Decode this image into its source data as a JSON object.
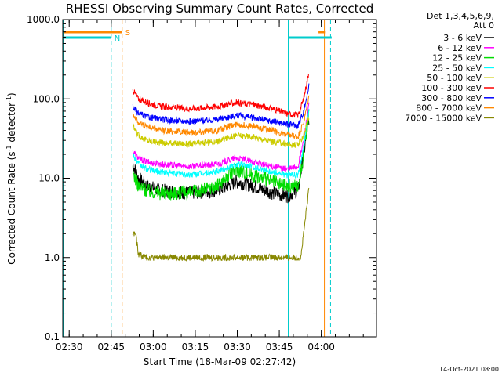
{
  "chart_data": {
    "type": "line",
    "title": "RHESSI Observing Summary Count Rates, Corrected",
    "xlabel": "Start Time (18-Mar-09 02:27:42)",
    "ylabel": "Corrected Count Rate (s",
    "ylabel_sup1": "-1",
    "ylabel_mid": " detector",
    "ylabel_sup2": "-1",
    "ylabel_end": ")",
    "yscale": "log",
    "ylim": [
      0.1,
      1000
    ],
    "xlim_minutes": [
      0,
      112
    ],
    "x_ticks": [
      {
        "minute": 2.3,
        "label": "02:30"
      },
      {
        "minute": 17.3,
        "label": "02:45"
      },
      {
        "minute": 32.3,
        "label": "03:00"
      },
      {
        "minute": 47.3,
        "label": "03:15"
      },
      {
        "minute": 62.3,
        "label": "03:30"
      },
      {
        "minute": 77.3,
        "label": "03:45"
      },
      {
        "minute": 92.3,
        "label": "04:00"
      }
    ],
    "y_ticks": [
      {
        "value": 0.1,
        "label": "0.1"
      },
      {
        "value": 1,
        "label": "1.0"
      },
      {
        "value": 10,
        "label": "10.0"
      },
      {
        "value": 100,
        "label": "100.0"
      },
      {
        "value": 1000,
        "label": "1000.0"
      }
    ],
    "legend_header": [
      "Det 1,3,4,5,6,9,",
      "Att 0"
    ],
    "series": [
      {
        "name": "3 - 6 keV",
        "color": "#000000",
        "x": [
          25,
          27,
          30,
          35,
          45,
          55,
          62,
          68,
          75,
          80,
          84,
          86,
          88
        ],
        "y": [
          15,
          10,
          8,
          7,
          6.5,
          7,
          9,
          8,
          6.5,
          6,
          7,
          20,
          60
        ]
      },
      {
        "name": "6 - 12 keV",
        "color": "#ff00ff",
        "x": [
          25,
          27,
          30,
          35,
          45,
          55,
          62,
          68,
          75,
          80,
          84,
          86,
          88
        ],
        "y": [
          22,
          18,
          16,
          15,
          14,
          15,
          18,
          16,
          14,
          13,
          14,
          30,
          90
        ]
      },
      {
        "name": "12 - 25 keV",
        "color": "#00dd00",
        "x": [
          25,
          27,
          30,
          35,
          45,
          55,
          62,
          68,
          75,
          80,
          84,
          86,
          88
        ],
        "y": [
          12,
          8,
          7,
          6.5,
          6.5,
          8,
          13,
          11,
          9,
          8,
          8,
          20,
          70
        ]
      },
      {
        "name": "25 - 50 keV",
        "color": "#00ffff",
        "x": [
          25,
          27,
          30,
          35,
          45,
          55,
          62,
          68,
          75,
          80,
          84,
          86,
          88
        ],
        "y": [
          20,
          15,
          13,
          12,
          11,
          12,
          15,
          14,
          12,
          11,
          11,
          25,
          80
        ]
      },
      {
        "name": "50 - 100 keV",
        "color": "#cccc00",
        "x": [
          25,
          27,
          30,
          35,
          45,
          55,
          62,
          68,
          75,
          80,
          84,
          86,
          88
        ],
        "y": [
          45,
          35,
          30,
          28,
          27,
          29,
          35,
          33,
          29,
          27,
          26,
          35,
          60
        ]
      },
      {
        "name": "100 - 300 keV",
        "color": "#ff0000",
        "x": [
          25,
          27,
          30,
          35,
          45,
          55,
          62,
          68,
          75,
          80,
          84,
          86,
          88
        ],
        "y": [
          130,
          100,
          90,
          80,
          75,
          80,
          90,
          85,
          75,
          65,
          62,
          100,
          230
        ]
      },
      {
        "name": "300 - 800 keV",
        "color": "#0000ff",
        "x": [
          25,
          27,
          30,
          35,
          45,
          55,
          62,
          68,
          75,
          80,
          84,
          86,
          88
        ],
        "y": [
          80,
          65,
          60,
          55,
          52,
          55,
          62,
          58,
          52,
          48,
          46,
          70,
          150
        ]
      },
      {
        "name": "800 - 7000 keV",
        "color": "#ff8800",
        "x": [
          25,
          27,
          30,
          35,
          45,
          55,
          62,
          68,
          75,
          80,
          84,
          86,
          88
        ],
        "y": [
          65,
          50,
          45,
          40,
          38,
          40,
          48,
          45,
          40,
          35,
          33,
          50,
          110
        ]
      },
      {
        "name": "7000 - 15000 keV",
        "color": "#888800",
        "x": [
          25,
          26,
          27,
          30,
          40,
          50,
          60,
          70,
          80,
          85,
          86,
          87,
          88
        ],
        "y": [
          2,
          2,
          1.1,
          1,
          1,
          1,
          1,
          1,
          1,
          1,
          2,
          4,
          8
        ]
      }
    ],
    "flags": [
      {
        "label": "S",
        "color": "#ff8800"
      },
      {
        "label": "N",
        "color": "#00cccc"
      }
    ],
    "footer_date": "14-Oct-2021 08:00"
  }
}
